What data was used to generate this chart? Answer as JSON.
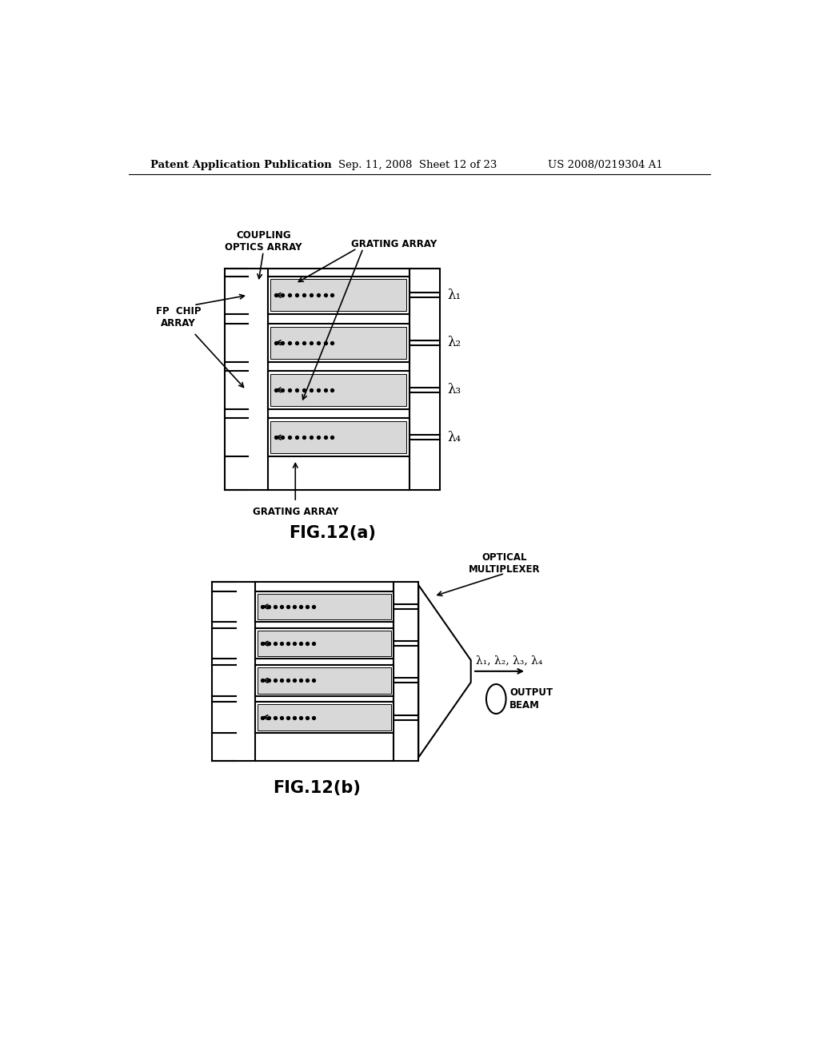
{
  "header_left": "Patent Application Publication",
  "header_mid": "Sep. 11, 2008  Sheet 12 of 23",
  "header_right": "US 2008/0219304 A1",
  "fig_a_caption": "FIG.12(a)",
  "fig_b_caption": "FIG.12(b)",
  "label_coupling": "COUPLING\nOPTICS ARRAY",
  "label_grating_top": "GRATING ARRAY",
  "label_grating_bot": "GRATING ARRAY",
  "label_fp": "FP  CHIP\nARRAY",
  "label_optical_mux": "OPTICAL\nMULTIPLEXER",
  "label_output_beam": "OUTPUT\nBEAM",
  "lambda_labels_a": [
    "λ₁",
    "λ₂",
    "λ₃",
    "λ₄"
  ],
  "lambda_labels_b": "λ₁, λ₂, λ₃, λ₄",
  "bg_color": "#ffffff",
  "line_color": "#000000"
}
